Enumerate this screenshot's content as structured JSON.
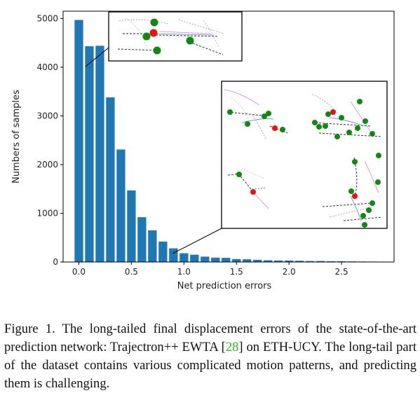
{
  "chart_data": {
    "type": "bar",
    "xlabel": "Net prediction errors",
    "ylabel": "Numbers of samples",
    "xlim": [
      -0.15,
      3.0
    ],
    "ylim": [
      0,
      5150
    ],
    "xticks": [
      "0.0",
      "0.5",
      "1.0",
      "1.5",
      "2.0",
      "2.5"
    ],
    "yticks": [
      "0",
      "1000",
      "2000",
      "3000",
      "4000",
      "5000"
    ],
    "bin_width": 0.1,
    "bar_color": "#1f77b4",
    "x": [
      0.0,
      0.1,
      0.2,
      0.3,
      0.4,
      0.5,
      0.6,
      0.7,
      0.8,
      0.9,
      1.0,
      1.1,
      1.2,
      1.3,
      1.4,
      1.5,
      1.6,
      1.7,
      1.8,
      1.9,
      2.0,
      2.1,
      2.2,
      2.3,
      2.4,
      2.5,
      2.6,
      2.7,
      2.8
    ],
    "values": [
      4970,
      4430,
      4440,
      3380,
      2310,
      1470,
      920,
      650,
      420,
      280,
      180,
      150,
      110,
      90,
      85,
      60,
      55,
      45,
      35,
      30,
      30,
      25,
      20,
      20,
      15,
      15,
      12,
      10,
      8
    ]
  },
  "caption": {
    "prefix": "Figure 1.  The long-tailed final displacement errors of the state-of-the-art prediction network: Trajectron++ EWTA [",
    "ref": "28",
    "suffix": "] on ETH-UCY. The long-tail part of the dataset contains various complicated motion patterns, and predicting them is challenging."
  }
}
